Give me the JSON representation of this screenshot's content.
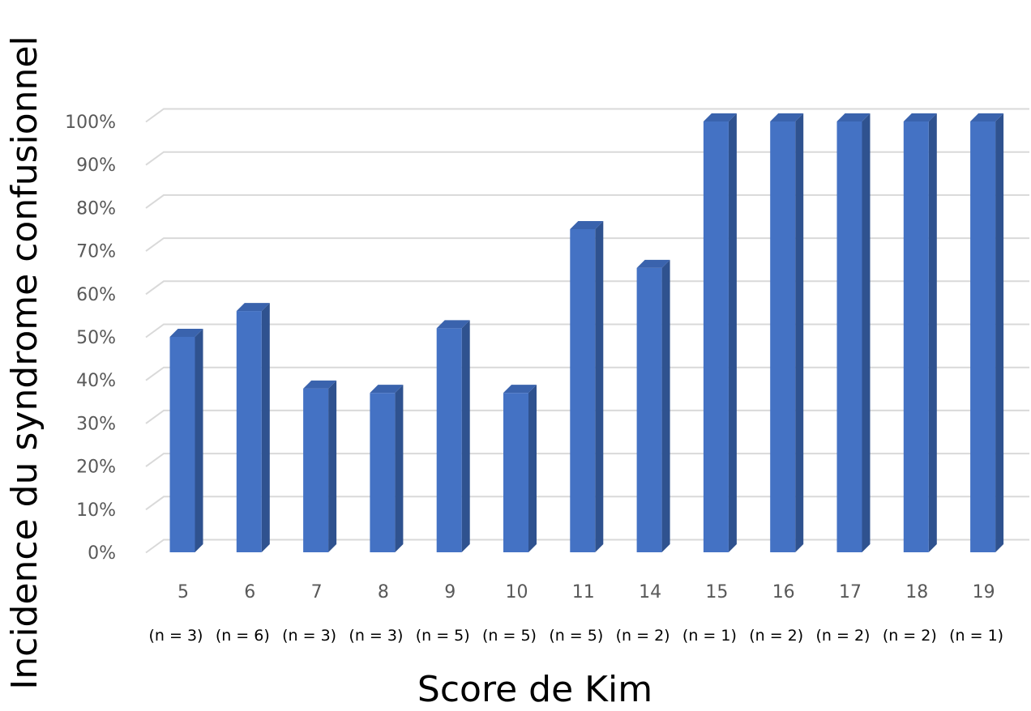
{
  "chart_data": {
    "type": "bar",
    "style": "3d-column",
    "xlabel": "Score de Kim",
    "ylabel": "Incidence du syndrome confusionnel",
    "categories": [
      "5",
      "6",
      "7",
      "8",
      "9",
      "10",
      "11",
      "14",
      "15",
      "16",
      "17",
      "18",
      "19"
    ],
    "sublabels": [
      "(n = 3)",
      "(n = 6)",
      "(n = 3)",
      "(n = 3)",
      "(n = 5)",
      "(n = 5)",
      "(n = 5)",
      "(n = 2)",
      "(n = 1)",
      "(n = 2)",
      "(n = 2)",
      "(n = 2)",
      "(n = 1)"
    ],
    "values": [
      50,
      56,
      38,
      37,
      52,
      37,
      75,
      66,
      100,
      100,
      100,
      100,
      100
    ],
    "value_unit": "%",
    "ylim": [
      0,
      100
    ],
    "yticks": [
      0,
      10,
      20,
      30,
      40,
      50,
      60,
      70,
      80,
      90,
      100
    ],
    "ytick_labels": [
      "0%",
      "10%",
      "20%",
      "30%",
      "40%",
      "50%",
      "60%",
      "70%",
      "80%",
      "90%",
      "100%"
    ],
    "grid": true,
    "legend": "none",
    "colors": {
      "bar_front": "#4472C4",
      "bar_side": "#2F528F",
      "bar_top": "#3A63AD",
      "grid": "#D9D9D9",
      "tick_text": "#595959",
      "title_text": "#000000"
    }
  }
}
